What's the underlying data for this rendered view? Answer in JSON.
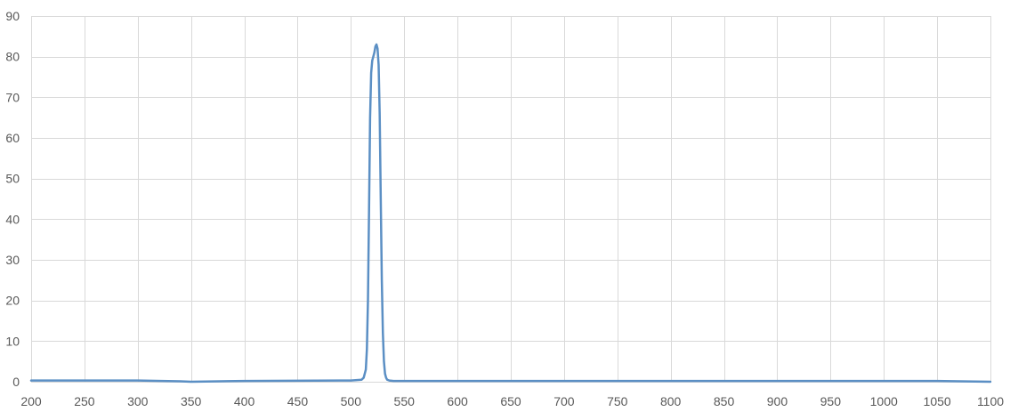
{
  "chart_data": {
    "type": "line",
    "title": "",
    "xlabel": "",
    "ylabel": "",
    "xlim": [
      200,
      1100
    ],
    "ylim": [
      0,
      90
    ],
    "x_ticks": [
      200,
      250,
      300,
      350,
      400,
      450,
      500,
      550,
      600,
      650,
      700,
      750,
      800,
      850,
      900,
      950,
      1000,
      1050,
      1100
    ],
    "y_ticks": [
      0,
      10,
      20,
      30,
      40,
      50,
      60,
      70,
      80,
      90
    ],
    "grid": true,
    "legend": "none",
    "series": [
      {
        "color": "#5b8fc4",
        "x": [
          200,
          300,
          340,
          350,
          400,
          500,
          510,
          512,
          514,
          515,
          516,
          517,
          518,
          519,
          520,
          521,
          522,
          523,
          524,
          525,
          526,
          527,
          528,
          529,
          530,
          531,
          532,
          533,
          534,
          536,
          540,
          560,
          700,
          900,
          1050,
          1100
        ],
        "y": [
          0.3,
          0.3,
          0.1,
          0.0,
          0.2,
          0.3,
          0.5,
          1.0,
          3.0,
          8.0,
          20.0,
          42.0,
          65.0,
          76.0,
          79.0,
          80.0,
          81.0,
          82.5,
          83.0,
          82.0,
          78.0,
          66.0,
          45.0,
          25.0,
          12.0,
          5.0,
          2.0,
          1.0,
          0.5,
          0.3,
          0.2,
          0.2,
          0.2,
          0.2,
          0.2,
          0.0
        ]
      }
    ]
  }
}
